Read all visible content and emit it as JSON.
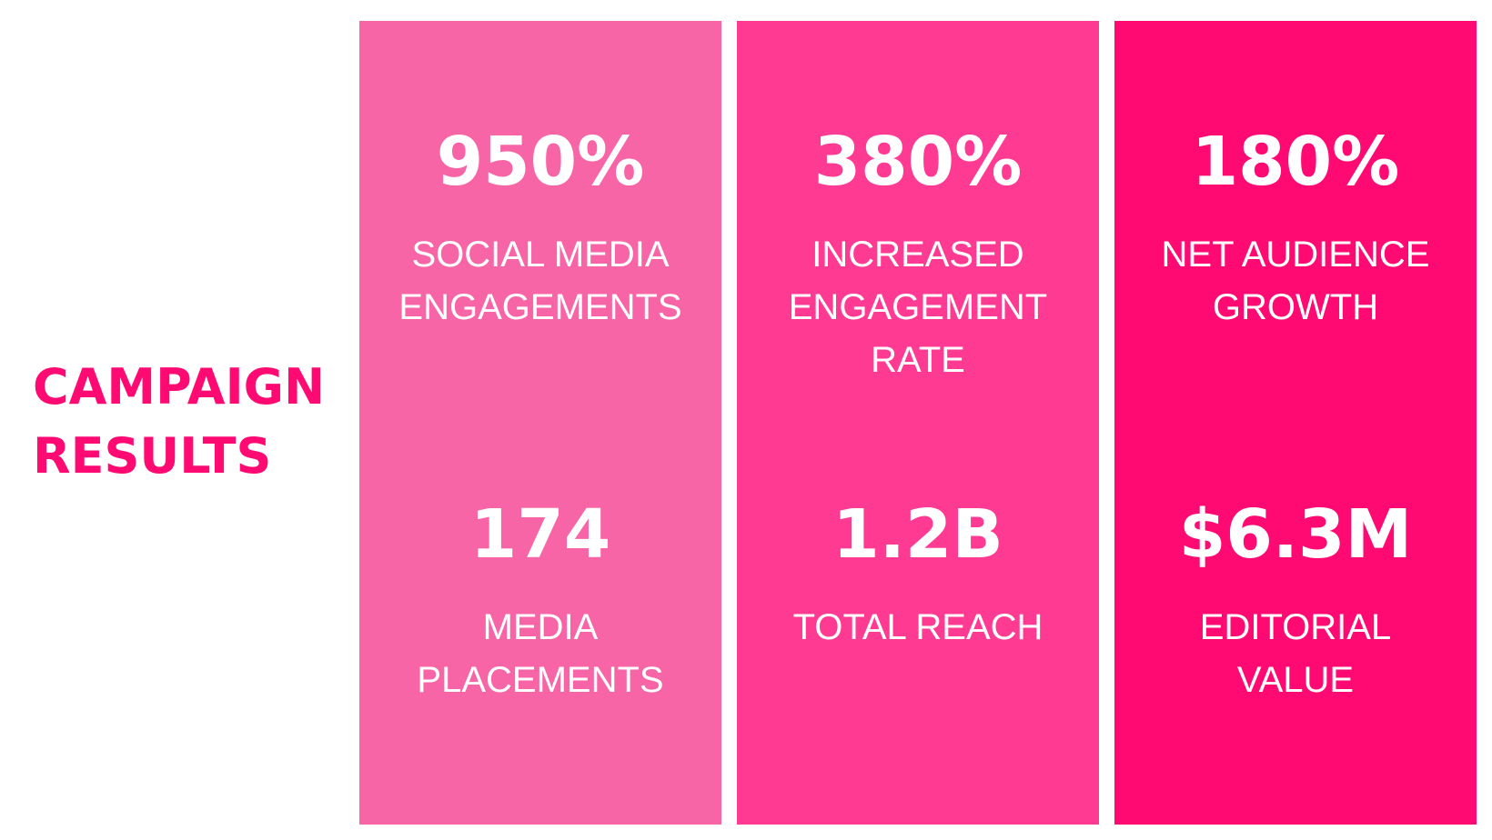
{
  "heading": {
    "line1": "CAMPAIGN",
    "line2": "RESULTS",
    "color": "#ff0a73"
  },
  "panels": [
    {
      "color": "#f765a6",
      "top": {
        "value": "950%",
        "label": "SOCIAL MEDIA\nENGAGEMENTS"
      },
      "bottom": {
        "value": "174",
        "label": "MEDIA\nPLACEMENTS"
      }
    },
    {
      "color": "#ff3a92",
      "top": {
        "value": "380%",
        "label": "INCREASED\nENGAGEMENT\nRATE"
      },
      "bottom": {
        "value": "1.2B",
        "label": "TOTAL REACH"
      }
    },
    {
      "color": "#ff0a73",
      "top": {
        "value": "180%",
        "label": "NET AUDIENCE\nGROWTH"
      },
      "bottom": {
        "value": "$6.3M",
        "label": "EDITORIAL\nVALUE"
      }
    }
  ]
}
